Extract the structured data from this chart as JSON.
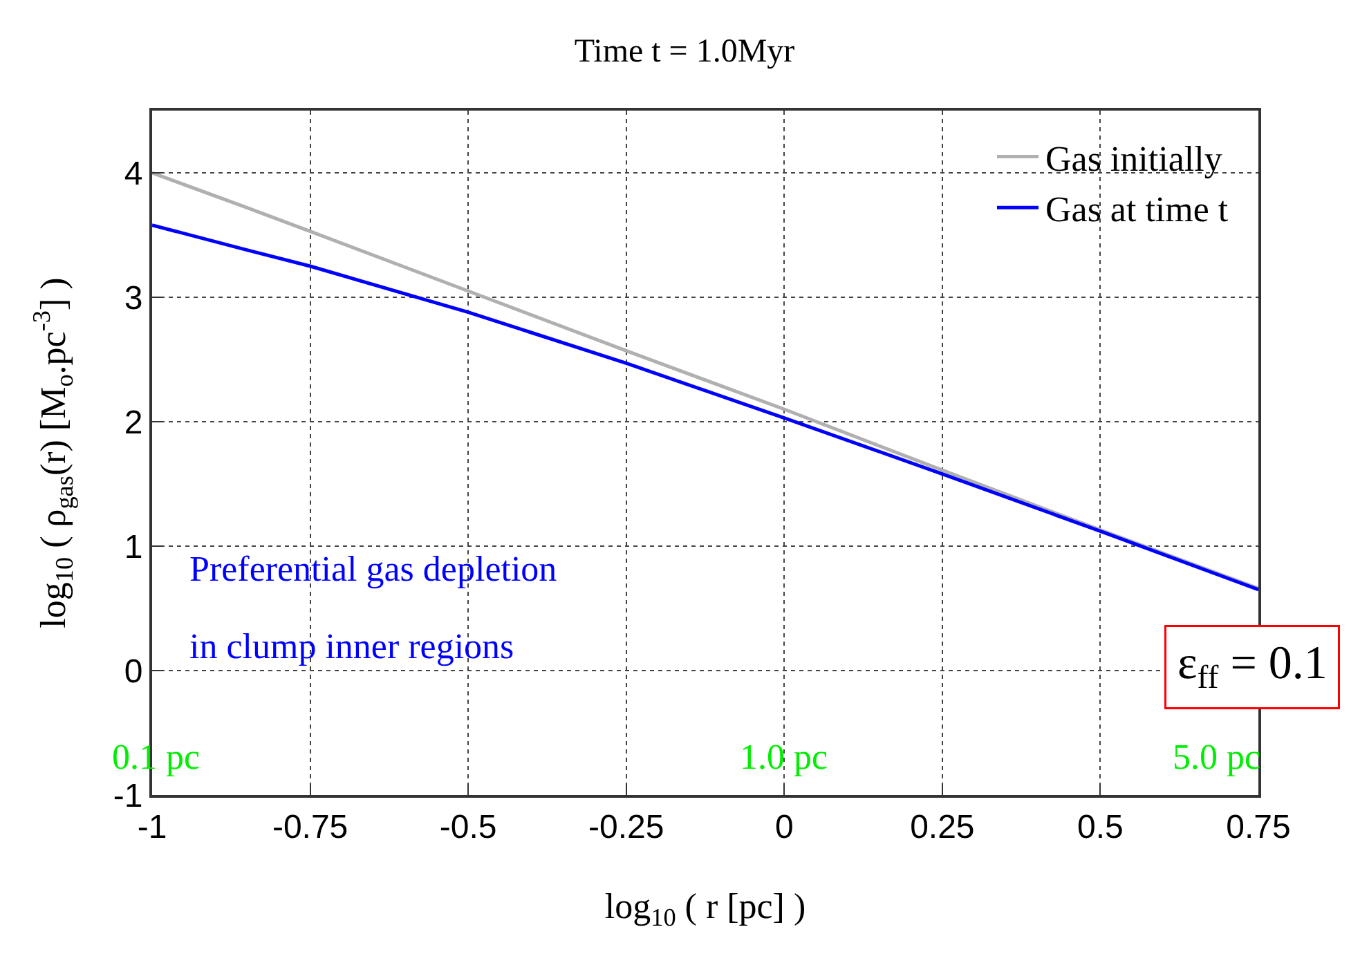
{
  "chart_data": {
    "type": "line",
    "title": "Time t = 1.0Myr",
    "xlabel": "log$_{10}$ ( r [pc] )",
    "ylabel": "log$_{10}$ ( ρ$_{gas}$(r) [M$_{o}$.pc$^{-3}$] )",
    "x": [
      -1,
      -0.85,
      -0.75,
      -0.5,
      -0.25,
      0,
      0.25,
      0.5,
      0.75
    ],
    "series": [
      {
        "name": "Gas initially",
        "color": "#b0b0b0",
        "values": [
          4.0,
          3.72,
          3.53,
          3.05,
          2.57,
          2.1,
          1.61,
          1.13,
          0.66
        ]
      },
      {
        "name": "Gas at time t",
        "color": "#0000ff",
        "values": [
          3.58,
          3.38,
          3.25,
          2.88,
          2.47,
          2.03,
          1.58,
          1.12,
          0.65
        ]
      }
    ],
    "xlim": [
      -1,
      0.75
    ],
    "ylim": [
      -1,
      4.5
    ],
    "xticks": [
      -1,
      -0.75,
      -0.5,
      -0.25,
      0,
      0.25,
      0.5,
      0.75
    ],
    "yticks": [
      -1,
      0,
      1,
      2,
      3,
      4
    ],
    "grid": true,
    "legend": "top right",
    "line_style": "solid",
    "marker": "none",
    "annotations": [
      "Preferential gas depletion",
      "in clump inner regions",
      "0.1 pc",
      "1.0 pc",
      "5.0 pc",
      "ε$_{ff}$ = 0.1"
    ]
  }
}
